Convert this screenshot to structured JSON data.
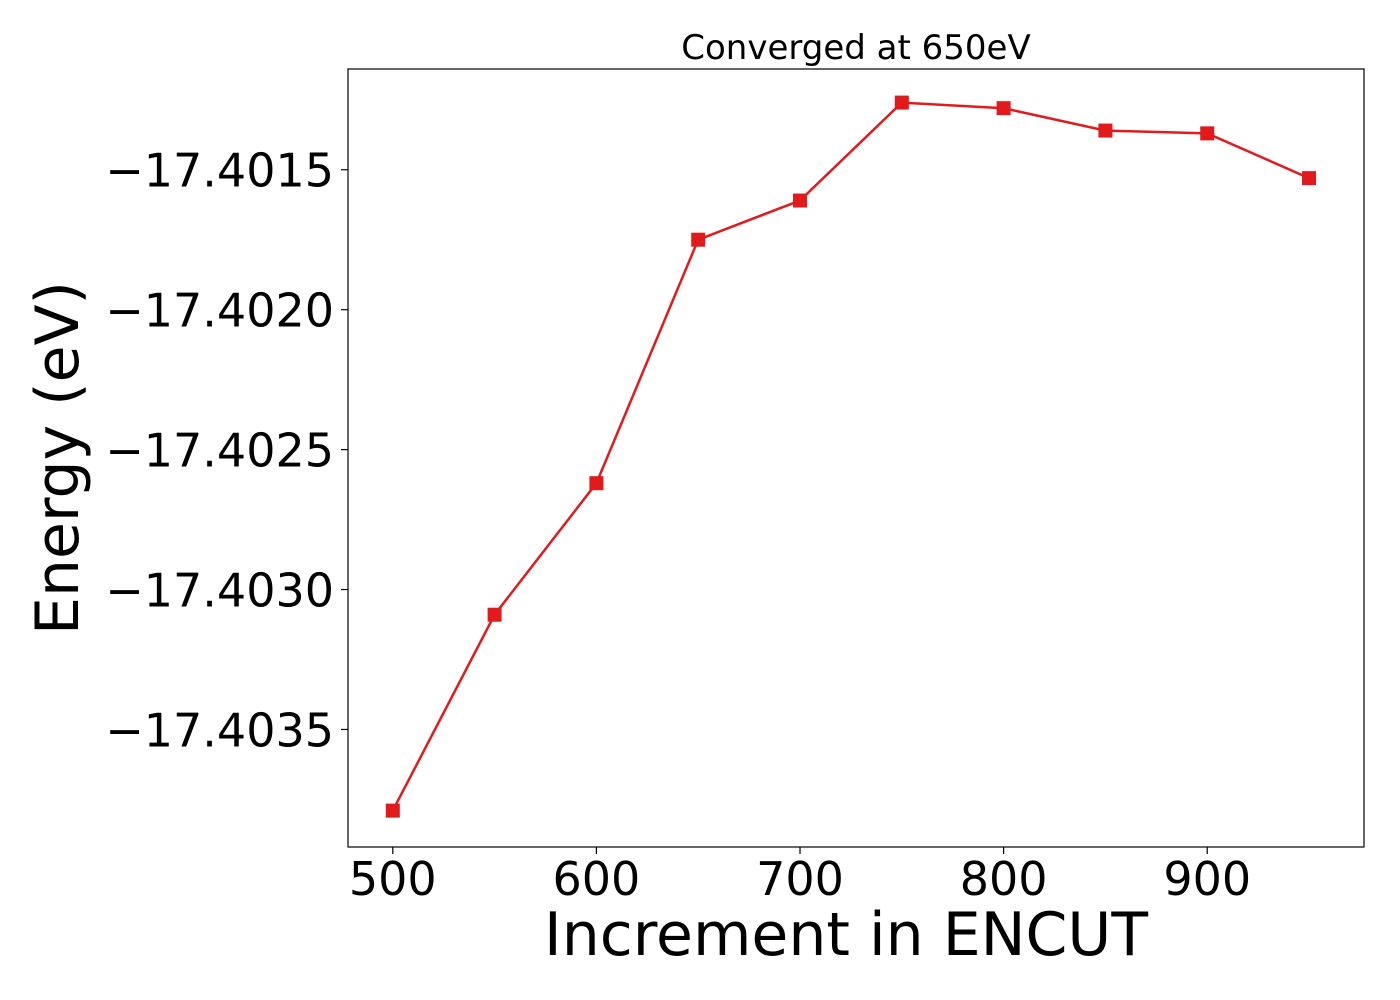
{
  "chart_data": {
    "type": "line",
    "title": "Converged at 650eV",
    "xlabel": "Increment in ENCUT",
    "ylabel": "Energy (eV)",
    "x": [
      500,
      550,
      600,
      650,
      700,
      750,
      800,
      850,
      900,
      950
    ],
    "series": [
      {
        "values": [
          -17.40379,
          -17.40309,
          -17.40262,
          -17.40175,
          -17.40161,
          -17.40126,
          -17.40128,
          -17.40136,
          -17.40137,
          -17.40153
        ],
        "color": "#e31a1c",
        "marker": "square"
      }
    ],
    "xlim": [
      478,
      977
    ],
    "ylim": [
      -17.40392,
      -17.40114
    ],
    "xticks": [
      500,
      600,
      700,
      800,
      900
    ],
    "xtick_labels": [
      "500",
      "600",
      "700",
      "800",
      "900"
    ],
    "yticks": [
      -17.4015,
      -17.402,
      -17.4025,
      -17.403,
      -17.4035
    ],
    "ytick_labels": [
      "−17.4015",
      "−17.4020",
      "−17.4025",
      "−17.4030",
      "−17.4035"
    ],
    "grid": false,
    "legend": "none"
  }
}
